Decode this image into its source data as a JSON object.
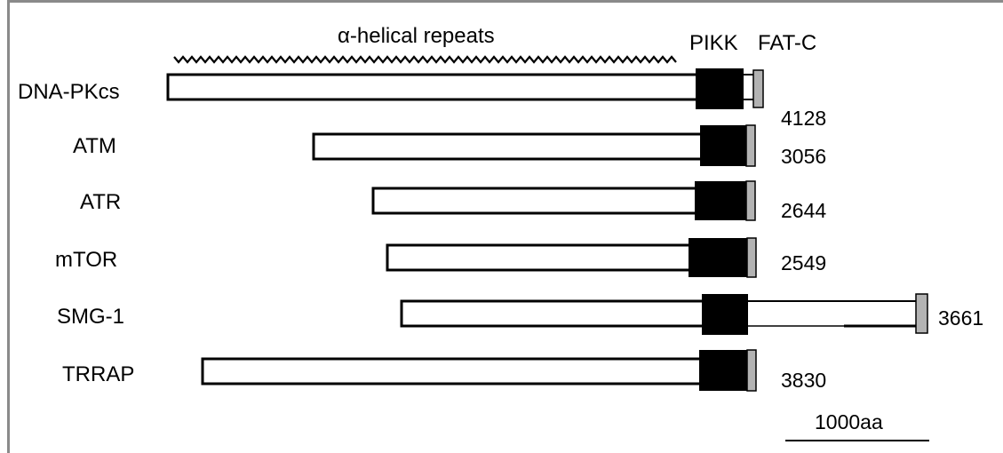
{
  "header": {
    "repeats_label": "α-helical repeats",
    "pikk_label": "PIKK",
    "fatc_label": "FAT-C"
  },
  "scale_bar": {
    "label": "1000aa"
  },
  "proteins": [
    {
      "name": "DNA-PKcs",
      "length": "4128"
    },
    {
      "name": "ATM",
      "length": "3056"
    },
    {
      "name": "ATR",
      "length": "2644"
    },
    {
      "name": "mTOR",
      "length": "2549"
    },
    {
      "name": "SMG-1",
      "length": "3661"
    },
    {
      "name": "TRRAP",
      "length": "3830"
    }
  ],
  "colors": {
    "pikk_domain": "#000000",
    "fatc_domain": "#b3b3b3",
    "frame": "#8a8a8a"
  }
}
